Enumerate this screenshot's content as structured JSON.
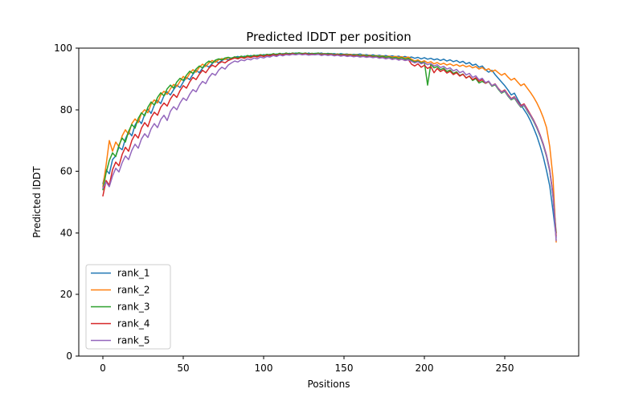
{
  "chart_data": {
    "type": "line",
    "title": "Predicted lDDT per position",
    "xlabel": "Positions",
    "ylabel": "Predicted lDDT",
    "xlim": [
      -15,
      296
    ],
    "ylim": [
      0,
      100
    ],
    "xticks": [
      0,
      50,
      100,
      150,
      200,
      250
    ],
    "yticks": [
      0,
      20,
      40,
      60,
      80,
      100
    ],
    "grid": false,
    "legend_position": "lower-left",
    "line_width": 1.5,
    "frame_color": "#000000",
    "legend_border_color": "#cccccc",
    "x": [
      0,
      2,
      4,
      6,
      8,
      10,
      12,
      14,
      16,
      18,
      20,
      22,
      24,
      26,
      28,
      30,
      32,
      34,
      36,
      38,
      40,
      42,
      44,
      46,
      48,
      50,
      52,
      54,
      56,
      58,
      60,
      62,
      64,
      66,
      68,
      70,
      72,
      74,
      76,
      78,
      80,
      82,
      84,
      86,
      88,
      90,
      92,
      94,
      96,
      98,
      100,
      102,
      104,
      106,
      108,
      110,
      112,
      114,
      116,
      118,
      120,
      122,
      124,
      126,
      128,
      130,
      132,
      134,
      136,
      138,
      140,
      142,
      144,
      146,
      148,
      150,
      152,
      154,
      156,
      158,
      160,
      162,
      164,
      166,
      168,
      170,
      172,
      174,
      176,
      178,
      180,
      182,
      184,
      186,
      188,
      190,
      192,
      194,
      196,
      198,
      200,
      202,
      204,
      206,
      208,
      210,
      212,
      214,
      216,
      218,
      220,
      222,
      224,
      226,
      228,
      230,
      232,
      234,
      236,
      238,
      240,
      242,
      244,
      246,
      248,
      250,
      252,
      254,
      256,
      258,
      260,
      262,
      264,
      266,
      268,
      270,
      272,
      274,
      276,
      278,
      280,
      282
    ],
    "series": [
      {
        "name": "rank_1",
        "color": "#1f77b4",
        "values": [
          56.0,
          60.5,
          59.2,
          63.8,
          65.0,
          67.8,
          67.0,
          70.5,
          72.8,
          71.5,
          75.0,
          76.8,
          75.5,
          78.5,
          80.2,
          78.8,
          81.5,
          83.0,
          82.0,
          84.5,
          85.8,
          84.8,
          86.5,
          88.0,
          87.2,
          89.0,
          90.5,
          89.8,
          91.5,
          92.8,
          92.0,
          93.5,
          94.5,
          93.8,
          95.0,
          95.8,
          95.2,
          96.0,
          96.5,
          96.2,
          96.8,
          97.0,
          97.3,
          96.9,
          97.4,
          97.2,
          97.6,
          97.3,
          97.7,
          97.5,
          97.9,
          97.6,
          98.0,
          97.8,
          98.1,
          97.9,
          98.2,
          98.0,
          98.3,
          98.1,
          98.4,
          98.2,
          98.3,
          98.0,
          98.4,
          98.1,
          98.3,
          98.2,
          98.4,
          98.0,
          98.3,
          98.1,
          98.2,
          97.9,
          98.2,
          98.0,
          98.1,
          97.8,
          98.0,
          97.9,
          98.1,
          97.7,
          97.9,
          97.6,
          97.8,
          97.5,
          97.7,
          97.4,
          97.6,
          97.3,
          97.5,
          97.2,
          97.4,
          97.0,
          97.3,
          96.9,
          97.1,
          96.7,
          97.0,
          96.5,
          96.9,
          96.4,
          96.7,
          96.2,
          96.5,
          96.0,
          96.4,
          95.8,
          96.2,
          95.6,
          96.0,
          95.3,
          95.7,
          94.9,
          95.3,
          94.4,
          94.8,
          93.8,
          94.2,
          93.0,
          92.2,
          92.8,
          91.4,
          90.2,
          89.0,
          87.8,
          86.4,
          84.8,
          85.4,
          83.4,
          81.6,
          80.0,
          78.4,
          76.4,
          74.0,
          71.4,
          68.2,
          64.6,
          60.2,
          55.2,
          47.2,
          38.5
        ]
      },
      {
        "name": "rank_2",
        "color": "#ff7f0e",
        "values": [
          55.0,
          62.0,
          70.0,
          66.5,
          69.5,
          68.0,
          71.5,
          73.5,
          72.0,
          75.5,
          77.0,
          75.8,
          78.8,
          80.0,
          79.0,
          81.8,
          83.2,
          82.2,
          84.8,
          86.0,
          85.0,
          86.8,
          88.2,
          87.5,
          89.2,
          90.8,
          90.0,
          91.8,
          93.0,
          92.2,
          93.8,
          94.8,
          94.0,
          95.2,
          96.0,
          95.4,
          96.2,
          96.6,
          96.3,
          96.9,
          96.6,
          97.1,
          96.8,
          97.3,
          97.0,
          97.5,
          97.2,
          97.6,
          97.4,
          97.8,
          97.5,
          97.9,
          97.7,
          98.0,
          97.8,
          98.1,
          97.9,
          98.2,
          98.0,
          98.2,
          97.9,
          98.3,
          98.1,
          98.3,
          98.0,
          98.2,
          98.1,
          98.3,
          98.1,
          98.2,
          98.0,
          98.1,
          97.9,
          98.1,
          97.8,
          98.0,
          97.9,
          98.0,
          97.7,
          97.9,
          97.6,
          97.8,
          97.5,
          97.7,
          97.4,
          97.6,
          97.3,
          97.5,
          97.2,
          97.4,
          97.1,
          97.3,
          97.0,
          97.2,
          96.8,
          97.1,
          96.4,
          95.8,
          96.2,
          95.5,
          95.9,
          95.2,
          95.6,
          94.9,
          95.3,
          94.7,
          95.1,
          94.5,
          94.9,
          94.3,
          94.7,
          94.1,
          94.5,
          93.9,
          94.3,
          93.6,
          94.0,
          93.2,
          93.7,
          92.8,
          93.3,
          92.4,
          92.9,
          92.0,
          91.2,
          91.8,
          90.6,
          89.6,
          90.2,
          89.0,
          87.8,
          88.4,
          87.0,
          85.6,
          84.0,
          82.2,
          80.0,
          77.4,
          74.2,
          68.0,
          58.0,
          37.0
        ]
      },
      {
        "name": "rank_3",
        "color": "#2ca02c",
        "values": [
          54.0,
          59.5,
          63.5,
          66.0,
          64.8,
          68.5,
          70.8,
          69.5,
          73.0,
          75.2,
          74.0,
          77.2,
          79.0,
          78.0,
          80.8,
          82.5,
          81.5,
          84.0,
          85.5,
          84.5,
          86.8,
          88.0,
          87.0,
          89.0,
          90.2,
          89.5,
          91.2,
          92.5,
          91.8,
          93.2,
          94.2,
          93.6,
          95.0,
          95.8,
          95.2,
          96.1,
          96.5,
          96.2,
          96.8,
          97.0,
          96.7,
          97.2,
          96.9,
          97.4,
          97.1,
          97.6,
          97.3,
          97.7,
          97.5,
          97.9,
          97.6,
          98.0,
          97.8,
          98.2,
          97.9,
          98.3,
          98.0,
          98.4,
          98.1,
          98.4,
          98.2,
          98.5,
          98.2,
          98.4,
          98.1,
          98.3,
          98.2,
          98.4,
          98.0,
          98.2,
          98.1,
          98.2,
          97.9,
          98.1,
          97.8,
          98.0,
          97.7,
          97.9,
          97.6,
          97.8,
          97.5,
          97.7,
          97.4,
          97.6,
          97.3,
          97.5,
          97.1,
          97.4,
          97.0,
          97.2,
          96.8,
          97.0,
          96.6,
          96.9,
          96.4,
          96.7,
          96.0,
          95.5,
          95.8,
          95.2,
          95.5,
          88.0,
          94.8,
          93.6,
          94.0,
          93.0,
          93.5,
          92.4,
          92.9,
          91.8,
          92.3,
          91.1,
          91.6,
          90.3,
          90.9,
          89.5,
          90.1,
          88.7,
          89.2,
          88.6,
          89.1,
          87.6,
          88.1,
          86.6,
          85.4,
          86.0,
          84.4,
          83.2,
          83.8,
          82.2,
          80.8,
          81.4,
          79.6,
          78.0,
          76.2,
          74.0,
          71.4,
          68.4,
          64.8,
          60.0,
          52.0,
          40.0
        ]
      },
      {
        "name": "rank_4",
        "color": "#d62728",
        "values": [
          52.0,
          57.0,
          55.5,
          60.5,
          63.0,
          61.8,
          65.5,
          67.8,
          66.5,
          70.0,
          72.0,
          70.8,
          74.0,
          75.8,
          74.5,
          77.5,
          79.2,
          78.2,
          80.8,
          82.2,
          81.2,
          83.5,
          85.0,
          84.0,
          86.2,
          87.8,
          87.0,
          89.0,
          90.5,
          89.8,
          91.5,
          92.8,
          92.0,
          93.5,
          94.5,
          93.9,
          95.0,
          95.6,
          95.2,
          96.0,
          96.4,
          96.8,
          96.5,
          97.0,
          96.7,
          97.2,
          96.9,
          97.4,
          97.1,
          97.6,
          97.3,
          97.7,
          97.5,
          97.9,
          97.6,
          98.0,
          97.8,
          98.1,
          97.9,
          98.2,
          97.9,
          98.1,
          98.0,
          98.2,
          97.9,
          98.1,
          97.9,
          98.1,
          97.8,
          98.0,
          97.8,
          98.0,
          97.7,
          97.9,
          97.6,
          97.8,
          97.5,
          97.7,
          97.4,
          97.6,
          97.2,
          97.5,
          97.1,
          97.4,
          97.0,
          97.2,
          96.8,
          97.0,
          96.6,
          96.8,
          96.4,
          96.6,
          96.2,
          96.4,
          96.0,
          96.3,
          94.8,
          94.2,
          94.9,
          93.8,
          94.4,
          93.4,
          94.0,
          92.0,
          93.4,
          92.4,
          93.0,
          91.9,
          92.5,
          91.4,
          92.0,
          90.9,
          91.5,
          90.3,
          90.9,
          89.8,
          90.4,
          89.2,
          89.8,
          88.6,
          89.2,
          87.8,
          88.4,
          86.9,
          85.8,
          86.4,
          84.9,
          83.6,
          84.2,
          82.7,
          81.3,
          81.9,
          80.2,
          78.4,
          76.6,
          74.4,
          71.8,
          68.8,
          65.2,
          60.5,
          52.5,
          39.0
        ]
      },
      {
        "name": "rank_5",
        "color": "#9467bd",
        "values": [
          54.5,
          56.5,
          55.0,
          58.5,
          61.0,
          59.8,
          62.8,
          65.0,
          63.8,
          66.8,
          68.8,
          67.5,
          70.5,
          72.2,
          71.0,
          73.8,
          75.5,
          74.2,
          76.8,
          78.2,
          76.5,
          79.5,
          81.0,
          80.0,
          82.2,
          83.8,
          83.0,
          85.0,
          86.5,
          85.8,
          87.8,
          89.2,
          88.5,
          90.5,
          91.8,
          91.2,
          92.8,
          93.8,
          93.2,
          94.5,
          95.2,
          95.8,
          95.5,
          96.2,
          95.9,
          96.5,
          96.2,
          96.8,
          96.5,
          97.1,
          96.8,
          97.3,
          97.1,
          97.6,
          97.3,
          97.8,
          97.5,
          97.9,
          97.7,
          98.0,
          97.8,
          98.1,
          97.8,
          98.0,
          97.7,
          97.9,
          97.8,
          98.0,
          97.6,
          97.9,
          97.6,
          97.8,
          97.5,
          97.7,
          97.4,
          97.6,
          97.3,
          97.5,
          97.2,
          97.4,
          97.1,
          97.3,
          97.0,
          97.2,
          96.9,
          97.1,
          96.7,
          96.9,
          96.5,
          96.8,
          96.3,
          96.6,
          96.1,
          96.4,
          96.0,
          96.2,
          95.7,
          95.2,
          95.6,
          94.9,
          95.3,
          94.6,
          95.0,
          94.2,
          94.6,
          93.7,
          94.1,
          93.2,
          93.6,
          92.6,
          93.1,
          92.0,
          92.5,
          91.3,
          91.8,
          90.5,
          91.0,
          89.7,
          90.2,
          88.8,
          89.3,
          87.8,
          88.3,
          86.8,
          85.6,
          86.2,
          84.6,
          83.4,
          84.0,
          82.4,
          81.0,
          81.6,
          79.8,
          78.2,
          76.4,
          74.2,
          71.6,
          68.6,
          65.0,
          60.2,
          52.2,
          37.5
        ]
      }
    ]
  }
}
